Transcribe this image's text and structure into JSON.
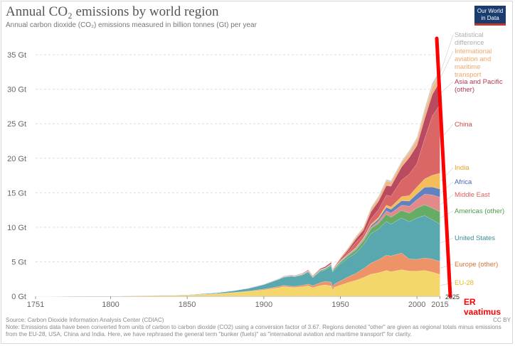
{
  "header": {
    "title": "Annual CO₂ emissions by world region",
    "subtitle": "Annual carbon dioxide (CO₂) emissions measured in billion tonnes (Gt) per year",
    "logo_line1": "Our World",
    "logo_line2": "in Data"
  },
  "chart_data": {
    "type": "area",
    "stacked": true,
    "title": "Annual CO₂ emissions by world region",
    "ylabel": "Gt",
    "ylim": [
      0,
      38
    ],
    "xlim": [
      1751,
      2025
    ],
    "y_ticks": [
      {
        "value": 0,
        "label": "0 Gt"
      },
      {
        "value": 5,
        "label": "5 Gt"
      },
      {
        "value": 10,
        "label": "10 Gt"
      },
      {
        "value": 15,
        "label": "15 Gt"
      },
      {
        "value": 20,
        "label": "20 Gt"
      },
      {
        "value": 25,
        "label": "25 Gt"
      },
      {
        "value": 30,
        "label": "30 Gt"
      },
      {
        "value": 35,
        "label": "35 Gt"
      }
    ],
    "x_ticks": [
      {
        "value": 1751,
        "label": "1751"
      },
      {
        "value": 1800,
        "label": "1800"
      },
      {
        "value": 1850,
        "label": "1850"
      },
      {
        "value": 1900,
        "label": "1900"
      },
      {
        "value": 1950,
        "label": "1950"
      },
      {
        "value": 2000,
        "label": "2000"
      },
      {
        "value": 2015,
        "label": "2015"
      }
    ],
    "x": [
      1751,
      1800,
      1850,
      1870,
      1880,
      1890,
      1900,
      1910,
      1913,
      1918,
      1920,
      1925,
      1929,
      1932,
      1937,
      1940,
      1944,
      1945,
      1946,
      1950,
      1955,
      1960,
      1965,
      1970,
      1975,
      1980,
      1983,
      1990,
      1995,
      2000,
      2005,
      2010,
      2015
    ],
    "series": [
      {
        "name": "EU-28",
        "label": "EU-28",
        "color": "#f4d35e",
        "values": [
          0.01,
          0.03,
          0.18,
          0.35,
          0.5,
          0.68,
          0.92,
          1.25,
          1.4,
          1.3,
          1.28,
          1.38,
          1.5,
          1.25,
          1.55,
          1.65,
          1.5,
          0.9,
          1.3,
          1.6,
          2.0,
          2.3,
          2.7,
          3.2,
          3.4,
          3.75,
          3.55,
          3.85,
          3.65,
          3.65,
          3.75,
          3.5,
          3.15
        ]
      },
      {
        "name": "Europe (other)",
        "label": "Europe (other)",
        "color": "#ed8a5c",
        "values": [
          0,
          0,
          0.02,
          0.04,
          0.05,
          0.07,
          0.12,
          0.17,
          0.2,
          0.15,
          0.15,
          0.2,
          0.26,
          0.28,
          0.42,
          0.5,
          0.55,
          0.4,
          0.45,
          0.6,
          0.8,
          1.0,
          1.3,
          1.6,
          1.9,
          2.2,
          2.3,
          2.4,
          1.75,
          1.7,
          1.8,
          1.9,
          1.9
        ]
      },
      {
        "name": "United States",
        "label": "United States",
        "color": "#4da1a9",
        "values": [
          0,
          0.01,
          0.05,
          0.15,
          0.25,
          0.4,
          0.65,
          1.05,
          1.15,
          1.45,
          1.4,
          1.48,
          1.75,
          1.15,
          1.65,
          1.65,
          2.35,
          2.2,
          2.05,
          2.5,
          2.75,
          2.95,
          3.45,
          4.3,
          4.45,
          4.9,
          4.6,
          5.1,
          5.4,
          6.0,
          6.15,
          5.7,
          5.4
        ]
      },
      {
        "name": "Americas (other)",
        "label": "Americas (other)",
        "color": "#5aa659",
        "values": [
          0,
          0,
          0,
          0,
          0,
          0.01,
          0.02,
          0.05,
          0.06,
          0.07,
          0.07,
          0.09,
          0.12,
          0.11,
          0.14,
          0.16,
          0.18,
          0.18,
          0.2,
          0.25,
          0.35,
          0.45,
          0.55,
          0.7,
          0.85,
          1.05,
          1.0,
          1.1,
          1.25,
          1.45,
          1.55,
          1.7,
          1.8
        ]
      },
      {
        "name": "Middle East",
        "label": "Middle East",
        "color": "#e08080",
        "values": [
          0,
          0,
          0,
          0,
          0,
          0,
          0,
          0,
          0,
          0,
          0,
          0,
          0,
          0,
          0.01,
          0.01,
          0.02,
          0.02,
          0.02,
          0.03,
          0.05,
          0.08,
          0.12,
          0.2,
          0.3,
          0.5,
          0.6,
          0.75,
          1.0,
          1.2,
          1.55,
          1.9,
          2.1
        ]
      },
      {
        "name": "Africa",
        "label": "Africa",
        "color": "#5577bb",
        "values": [
          0,
          0,
          0,
          0,
          0,
          0,
          0.01,
          0.01,
          0.02,
          0.02,
          0.02,
          0.02,
          0.03,
          0.03,
          0.04,
          0.04,
          0.05,
          0.05,
          0.05,
          0.07,
          0.09,
          0.12,
          0.15,
          0.25,
          0.3,
          0.5,
          0.55,
          0.65,
          0.75,
          0.85,
          1.0,
          1.15,
          1.2
        ]
      },
      {
        "name": "India",
        "label": "India",
        "color": "#f4b84c",
        "values": [
          0,
          0,
          0,
          0,
          0,
          0.01,
          0.02,
          0.03,
          0.03,
          0.03,
          0.03,
          0.04,
          0.04,
          0.04,
          0.05,
          0.05,
          0.05,
          0.05,
          0.05,
          0.06,
          0.08,
          0.12,
          0.16,
          0.2,
          0.25,
          0.3,
          0.35,
          0.6,
          0.8,
          1.0,
          1.2,
          1.7,
          2.3
        ]
      },
      {
        "name": "China",
        "label": "China",
        "color": "#d75a5a",
        "values": [
          0,
          0,
          0,
          0,
          0,
          0,
          0,
          0.01,
          0.01,
          0.01,
          0.01,
          0.02,
          0.02,
          0.02,
          0.03,
          0.03,
          0.03,
          0.03,
          0.03,
          0.08,
          0.3,
          0.78,
          0.5,
          0.8,
          1.15,
          1.45,
          1.55,
          2.4,
          3.1,
          3.4,
          5.8,
          8.6,
          9.9
        ]
      },
      {
        "name": "Asia and Pacific (other)",
        "label": "Asia and Pacific (other)",
        "color": "#b53b52",
        "values": [
          0,
          0,
          0,
          0.01,
          0.01,
          0.02,
          0.03,
          0.05,
          0.06,
          0.07,
          0.07,
          0.09,
          0.12,
          0.11,
          0.15,
          0.2,
          0.22,
          0.12,
          0.1,
          0.2,
          0.3,
          0.45,
          0.65,
          1.0,
          1.2,
          1.4,
          1.45,
          1.9,
          2.4,
          2.6,
          2.9,
          3.1,
          3.4
        ]
      },
      {
        "name": "International aviation and maritime transport",
        "label": "International aviation and maritime transport",
        "color": "#f0b27a",
        "values": [
          0,
          0,
          0,
          0,
          0,
          0,
          0,
          0,
          0,
          0,
          0,
          0,
          0,
          0,
          0,
          0,
          0,
          0,
          0,
          0.2,
          0.25,
          0.3,
          0.35,
          0.5,
          0.55,
          0.65,
          0.6,
          0.65,
          0.75,
          0.9,
          1.0,
          1.05,
          1.1
        ]
      },
      {
        "name": "Statistical difference",
        "label": "Statistical difference",
        "color": "#c8c8c8",
        "values": [
          0,
          0,
          0,
          0,
          0,
          0,
          0,
          0,
          0,
          0,
          0,
          0,
          0,
          0,
          0,
          0,
          0,
          0,
          0,
          0,
          0.05,
          0.1,
          0.1,
          0.15,
          0.2,
          0.25,
          0.2,
          0.2,
          0.3,
          0.3,
          0.5,
          0.6,
          0.5
        ]
      }
    ],
    "annotations": [
      {
        "text": "2025",
        "x": 2025
      },
      {
        "text": "ER vaatimus",
        "color": "#ff0000"
      }
    ]
  },
  "legend_labels": [
    {
      "key": "stat",
      "lines": [
        "Statistical",
        "difference"
      ],
      "color": "#b0b0b0"
    },
    {
      "key": "intl",
      "lines": [
        "International",
        "aviation and",
        "maritime",
        "transport"
      ],
      "color": "#f0a868"
    },
    {
      "key": "asia",
      "lines": [
        "Asia and Pacific",
        "(other)"
      ],
      "color": "#b03a50"
    },
    {
      "key": "china",
      "lines": [
        "China"
      ],
      "color": "#d04848"
    },
    {
      "key": "india",
      "lines": [
        "India"
      ],
      "color": "#e8a030"
    },
    {
      "key": "africa",
      "lines": [
        "Africa"
      ],
      "color": "#4466aa"
    },
    {
      "key": "me",
      "lines": [
        "Middle East"
      ],
      "color": "#d96060"
    },
    {
      "key": "amer",
      "lines": [
        "Americas (other)"
      ],
      "color": "#4a9a48"
    },
    {
      "key": "us",
      "lines": [
        "United States"
      ],
      "color": "#3c8d96"
    },
    {
      "key": "europe",
      "lines": [
        "Europe (other)"
      ],
      "color": "#e07030"
    },
    {
      "key": "eu",
      "lines": [
        "EU-28"
      ],
      "color": "#e8b820"
    }
  ],
  "footer": {
    "source": "Source: Carbon Dioxide Information Analysis Center (CDIAC)",
    "note": "Note: Emissions data have been converted from units of carbon to carbon dioxide (CO2) using a conversion factor of 3.67. Regions denoted \"other\" are given as regional totals minus emissions from the EU-28, USA, China and India. Here, we have rephrased the general term \"bunker (fuels)\" as \"international aviation and maritime transport\" for clarity.",
    "license": "CC BY"
  },
  "annotation": {
    "year_label": "2025",
    "line1": "ER",
    "line2": "vaatimus",
    "color": "#ff0000"
  }
}
